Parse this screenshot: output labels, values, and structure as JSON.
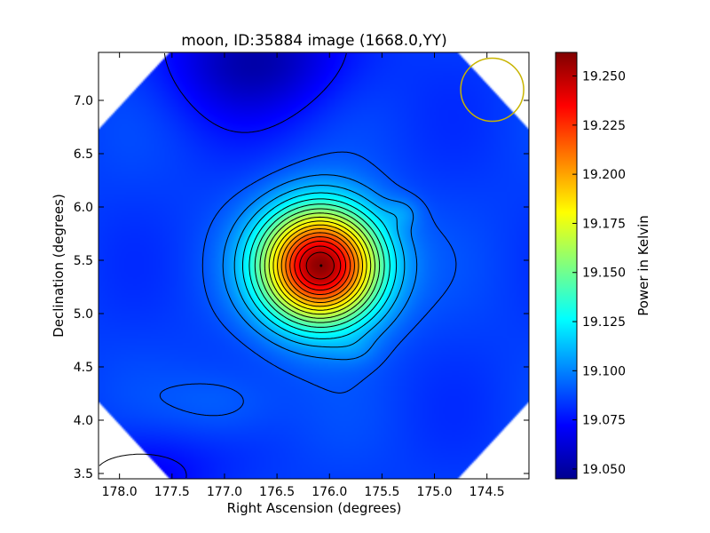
{
  "chart_data": {
    "type": "heatmap",
    "title": "moon, ID:35884 image (1668.0,YY)",
    "xlabel": "Right Ascension (degrees)",
    "ylabel": "Declination (degrees)",
    "xlim": [
      178.2,
      174.1
    ],
    "ylim": [
      3.45,
      7.45
    ],
    "x_ticks": [
      178.0,
      177.5,
      177.0,
      176.5,
      176.0,
      175.5,
      175.0,
      174.5
    ],
    "x_tick_labels": [
      "178.0",
      "177.5",
      "177.0",
      "176.5",
      "176.0",
      "175.5",
      "175.0",
      "174.5"
    ],
    "y_ticks": [
      3.5,
      4.0,
      4.5,
      5.0,
      5.5,
      6.0,
      6.5,
      7.0
    ],
    "y_tick_labels": [
      "3.5",
      "4.0",
      "4.5",
      "5.0",
      "5.5",
      "6.0",
      "6.5",
      "7.0"
    ],
    "colormap": "jet",
    "colorbar": {
      "label": "Power in Kelvin",
      "range": [
        19.045,
        19.262
      ],
      "ticks": [
        19.05,
        19.075,
        19.1,
        19.125,
        19.15,
        19.175,
        19.2,
        19.225,
        19.25
      ],
      "tick_labels": [
        "19.050",
        "19.075",
        "19.100",
        "19.125",
        "19.150",
        "19.175",
        "19.200",
        "19.225",
        "19.250"
      ]
    },
    "background_level": 19.085,
    "peak": {
      "ra": 176.08,
      "dec": 5.45,
      "value": 19.262
    },
    "features": [
      {
        "kind": "peak",
        "ra": 176.08,
        "dec": 5.45,
        "value": 19.262,
        "width_ra": 0.4,
        "width_dec": 0.38
      },
      {
        "kind": "cool-region",
        "ra": 176.7,
        "dec": 7.4,
        "value": 19.055,
        "width_ra": 0.6,
        "width_dec": 0.4
      },
      {
        "kind": "cool-region",
        "ra": 177.8,
        "dec": 3.5,
        "value": 19.07,
        "width_ra": 0.5,
        "width_dec": 0.3
      },
      {
        "kind": "warm-region",
        "ra": 175.3,
        "dec": 5.95,
        "value": 19.095,
        "width_ra": 0.12,
        "width_dec": 0.1
      },
      {
        "kind": "warm-region",
        "ra": 175.75,
        "dec": 4.65,
        "value": 19.09,
        "width_ra": 0.15,
        "width_dec": 0.1
      },
      {
        "kind": "warm-region",
        "ra": 177.0,
        "dec": 4.15,
        "value": 19.095,
        "width_ra": 0.4,
        "width_dec": 0.25
      }
    ],
    "contours": {
      "levels": [
        19.075,
        19.09,
        19.1,
        19.11,
        19.12,
        19.13,
        19.14,
        19.15,
        19.16,
        19.17,
        19.18,
        19.19,
        19.2,
        19.21,
        19.22,
        19.23,
        19.24,
        19.25
      ],
      "color": "#000000"
    },
    "beam_circle": {
      "ra": 174.45,
      "dec": 7.1,
      "radius_deg": 0.3,
      "color": "#c8b400"
    },
    "grid": false,
    "legend": "none"
  }
}
